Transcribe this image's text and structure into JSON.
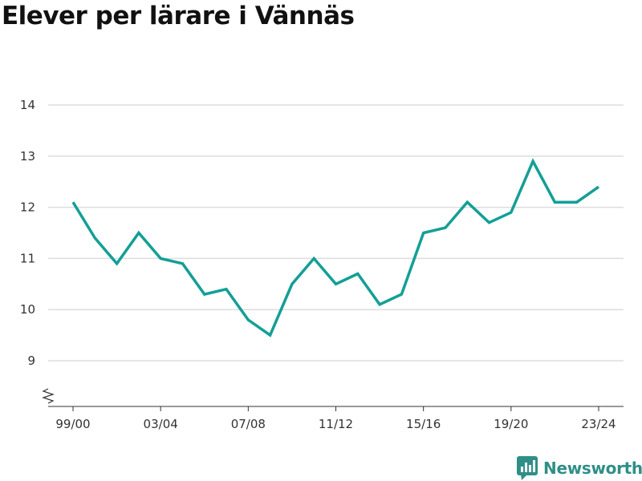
{
  "colors": {
    "line": "#139f96",
    "grid": "#dddddd",
    "axis": "#333333",
    "brand": "#2f8f87"
  },
  "chart_data": {
    "type": "line",
    "title": "Elever per lärare i Vännäs",
    "xlabel": "",
    "ylabel": "",
    "x": [
      "99/00",
      "00/01",
      "01/02",
      "02/03",
      "03/04",
      "04/05",
      "05/06",
      "06/07",
      "07/08",
      "08/09",
      "09/10",
      "10/11",
      "11/12",
      "12/13",
      "13/14",
      "14/15",
      "15/16",
      "16/17",
      "17/18",
      "18/19",
      "19/20",
      "20/21",
      "21/22",
      "22/23",
      "23/24"
    ],
    "x_tick_labels": [
      "99/00",
      "03/04",
      "07/08",
      "11/12",
      "15/16",
      "19/20",
      "23/24"
    ],
    "series": [
      {
        "values": [
          12.1,
          11.4,
          10.9,
          11.5,
          11.0,
          10.9,
          10.3,
          10.4,
          9.8,
          9.5,
          10.5,
          11.0,
          10.5,
          10.7,
          10.1,
          10.3,
          11.5,
          11.6,
          12.1,
          11.7,
          11.9,
          12.9,
          12.1,
          12.1,
          12.4
        ],
        "color": "#139f96"
      }
    ],
    "y_ticks": [
      9,
      10,
      11,
      12,
      13,
      14
    ],
    "ylim": [
      8.1,
      14.6
    ],
    "y_axis_break": true,
    "grid": true,
    "legend": "none"
  },
  "brand": {
    "name": "Newsworthy",
    "icon": "bar-chart-speech-bubble-icon"
  }
}
